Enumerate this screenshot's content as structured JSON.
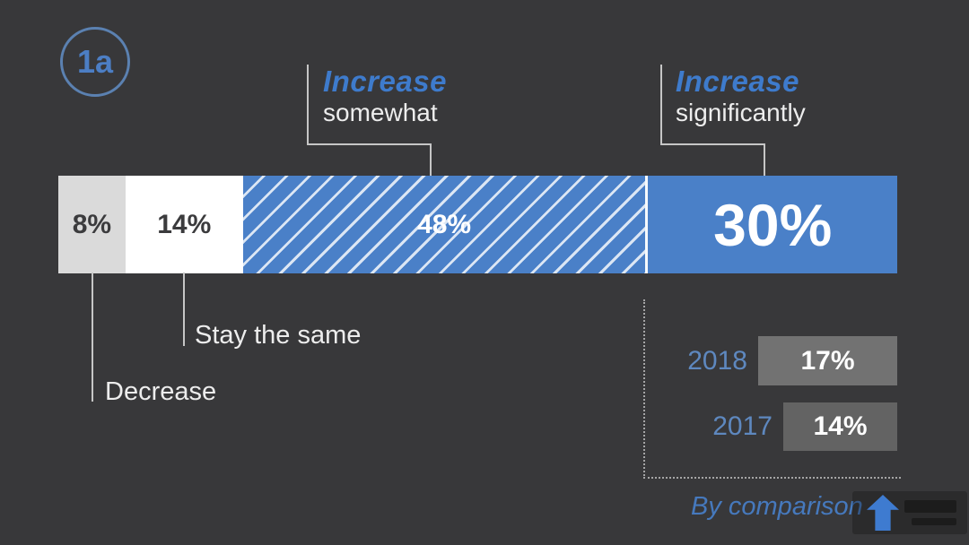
{
  "badge": {
    "label": "1a"
  },
  "chart_data": {
    "type": "bar",
    "orientation": "horizontal_stacked",
    "unit": "%",
    "title": "",
    "segments": [
      {
        "label": "Decrease",
        "value": 8,
        "display": "8%"
      },
      {
        "label": "Stay the same",
        "value": 14,
        "display": "14%"
      },
      {
        "label": "Increase somewhat",
        "value": 48,
        "display": "48%"
      },
      {
        "label": "Increase significantly",
        "value": 30,
        "display": "30%"
      }
    ],
    "callouts": {
      "somewhat": {
        "emphasis": "Increase",
        "rest": "somewhat"
      },
      "significantly": {
        "emphasis": "Increase",
        "rest": "significantly"
      }
    },
    "comparison": {
      "caption": "By comparison",
      "rows": [
        {
          "year": "2018",
          "value": 17,
          "display": "17%"
        },
        {
          "year": "2017",
          "value": 14,
          "display": "14%"
        }
      ]
    },
    "grid": false,
    "legend_position": "none"
  },
  "colors": {
    "background": "#38383a",
    "bar_blue": "#4a80c8",
    "callout_blue": "#3e7bcc",
    "year_blue": "#5e88bf",
    "caption_blue": "#4679bd",
    "segment_light_gray": "#dadada",
    "segment_white": "#ffffff",
    "box_2018_gray": "#727272",
    "box_2017_gray": "#636363",
    "connector_gray": "#c6c6c6"
  },
  "watermark": {
    "icon": "up-arrow"
  }
}
